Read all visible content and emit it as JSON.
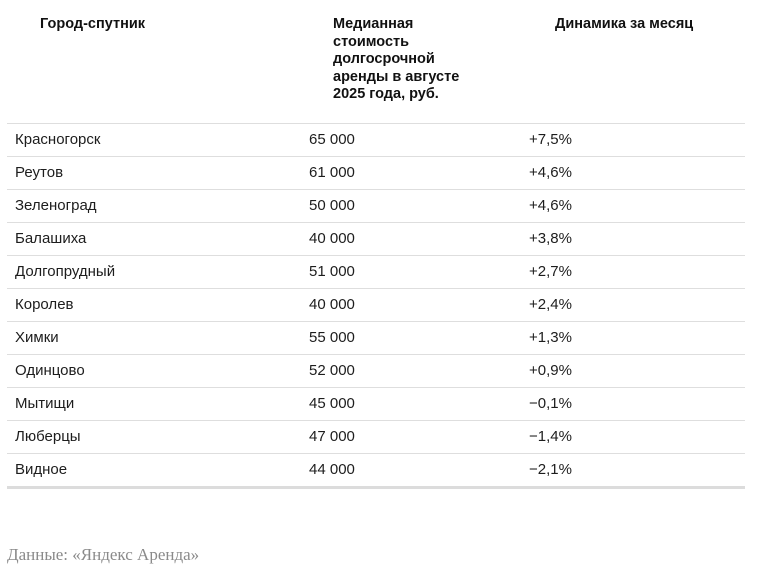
{
  "table": {
    "headers": [
      "Город-спутник",
      "Медианная стоимость долгосрочной аренды в августе 2025 года, руб.",
      "Динамика за месяц"
    ],
    "rows": [
      {
        "city": "Красногорск",
        "median_rent": "65 000",
        "monthly_change": "+7,5%"
      },
      {
        "city": "Реутов",
        "median_rent": "61 000",
        "monthly_change": "+4,6%"
      },
      {
        "city": "Зеленоград",
        "median_rent": "50 000",
        "monthly_change": "+4,6%"
      },
      {
        "city": "Балашиха",
        "median_rent": "40 000",
        "monthly_change": "+3,8%"
      },
      {
        "city": "Долгопрудный",
        "median_rent": "51 000",
        "monthly_change": "+2,7%"
      },
      {
        "city": "Королев",
        "median_rent": "40 000",
        "monthly_change": "+2,4%"
      },
      {
        "city": "Химки",
        "median_rent": "55 000",
        "monthly_change": "+1,3%"
      },
      {
        "city": "Одинцово",
        "median_rent": "52 000",
        "monthly_change": "+0,9%"
      },
      {
        "city": "Мытищи",
        "median_rent": "45 000",
        "monthly_change": "−0,1%"
      },
      {
        "city": "Люберцы",
        "median_rent": "47 000",
        "monthly_change": "−1,4%"
      },
      {
        "city": "Видное",
        "median_rent": "44 000",
        "monthly_change": "−2,1%"
      }
    ]
  },
  "source": "Данные: «Яндекс Аренда»"
}
